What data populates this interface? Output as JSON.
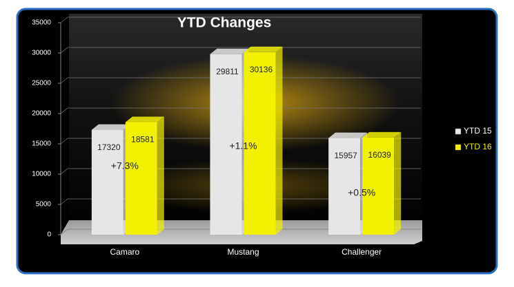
{
  "chart_data": {
    "type": "bar3d",
    "title": "YTD Changes",
    "categories": [
      "Camaro",
      "Mustang",
      "Challenger"
    ],
    "series": [
      {
        "name": "YTD 15",
        "color": "#e6e6e6",
        "values": [
          17320,
          29811,
          15957
        ]
      },
      {
        "name": "YTD 16",
        "color": "#f2f200",
        "values": [
          18581,
          30136,
          16039
        ]
      }
    ],
    "annotations": [
      "+7.3%",
      "+1.1%",
      "+0.5%"
    ],
    "ylim": [
      0,
      35000
    ],
    "yticks": [
      0,
      5000,
      10000,
      15000,
      20000,
      25000,
      30000,
      35000
    ],
    "grid": true,
    "legend": "right"
  }
}
